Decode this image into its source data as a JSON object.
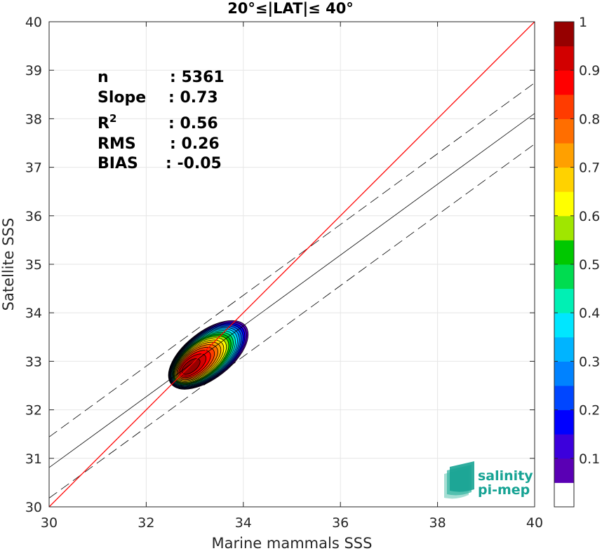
{
  "chart_data": {
    "type": "density-scatter",
    "title": "20°≤|LAT|≤ 40°",
    "xlabel": "Marine mammals SSS",
    "ylabel": "Satellite SSS",
    "xlim": [
      30,
      40
    ],
    "ylim": [
      30,
      40
    ],
    "xticks": [
      30,
      32,
      34,
      36,
      38,
      40
    ],
    "yticks": [
      30,
      31,
      32,
      33,
      34,
      35,
      36,
      37,
      38,
      39,
      40
    ],
    "grid": true,
    "stats": [
      {
        "label": "n",
        "value": ": 5361"
      },
      {
        "label": "Slope",
        "value": ": 0.73"
      },
      {
        "label": "R",
        "sup": "2",
        "value": ": 0.56"
      },
      {
        "label": "RMS",
        "value": ": 0.26"
      },
      {
        "label": "BIAS",
        "value": ": -0.05"
      }
    ],
    "density_center": {
      "x": 32.93,
      "y": 32.88
    },
    "regression": {
      "slope": 0.73,
      "intercept": 8.91,
      "confidence_offset": 0.63
    },
    "identity_line_color": "#ff0000",
    "colorbar": {
      "ticks": [
        0.1,
        0.2,
        0.3,
        0.4,
        0.5,
        0.6,
        0.7,
        0.8,
        0.9,
        1
      ],
      "tick_labels": [
        "0.1",
        "0.2",
        "0.3",
        "0.4",
        "0.5",
        "0.6",
        "0.7",
        "0.8",
        "0.9",
        "1"
      ],
      "colors": [
        "#ffffff",
        "#5a00b4",
        "#3c00dc",
        "#0000ff",
        "#0046ff",
        "#0082ff",
        "#00b4ff",
        "#00e6ff",
        "#00f0b4",
        "#00dc50",
        "#00c800",
        "#a0e600",
        "#ffff00",
        "#ffd200",
        "#ffa000",
        "#ff6e00",
        "#ff3c00",
        "#ff0000",
        "#d20000",
        "#960000"
      ]
    },
    "logo": {
      "line1": "salinity",
      "line2": "pi-mep"
    }
  }
}
